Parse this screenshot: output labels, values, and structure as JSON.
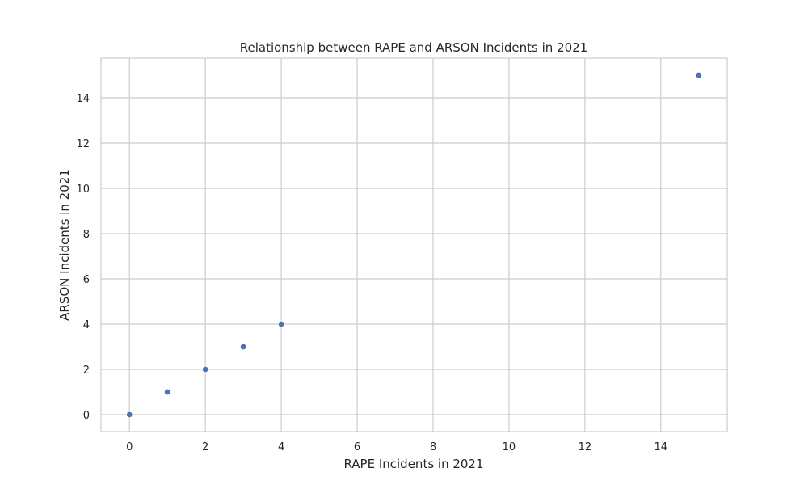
{
  "chart_data": {
    "type": "scatter",
    "title": "Relationship between RAPE and ARSON Incidents in 2021",
    "xlabel": "RAPE Incidents in 2021",
    "ylabel": "ARSON Incidents in 2021",
    "xlim": [
      -0.75,
      15.75
    ],
    "ylim": [
      -0.75,
      15.75
    ],
    "xticks": [
      0,
      2,
      4,
      6,
      8,
      10,
      12,
      14
    ],
    "yticks": [
      0,
      2,
      4,
      6,
      8,
      10,
      12,
      14
    ],
    "grid": true,
    "marker_color": "#4c72b0",
    "grid_color": "#cccccc",
    "points": [
      {
        "x": 0,
        "y": 0
      },
      {
        "x": 1,
        "y": 1
      },
      {
        "x": 2,
        "y": 2
      },
      {
        "x": 3,
        "y": 3
      },
      {
        "x": 4,
        "y": 4
      },
      {
        "x": 15,
        "y": 15
      }
    ]
  }
}
